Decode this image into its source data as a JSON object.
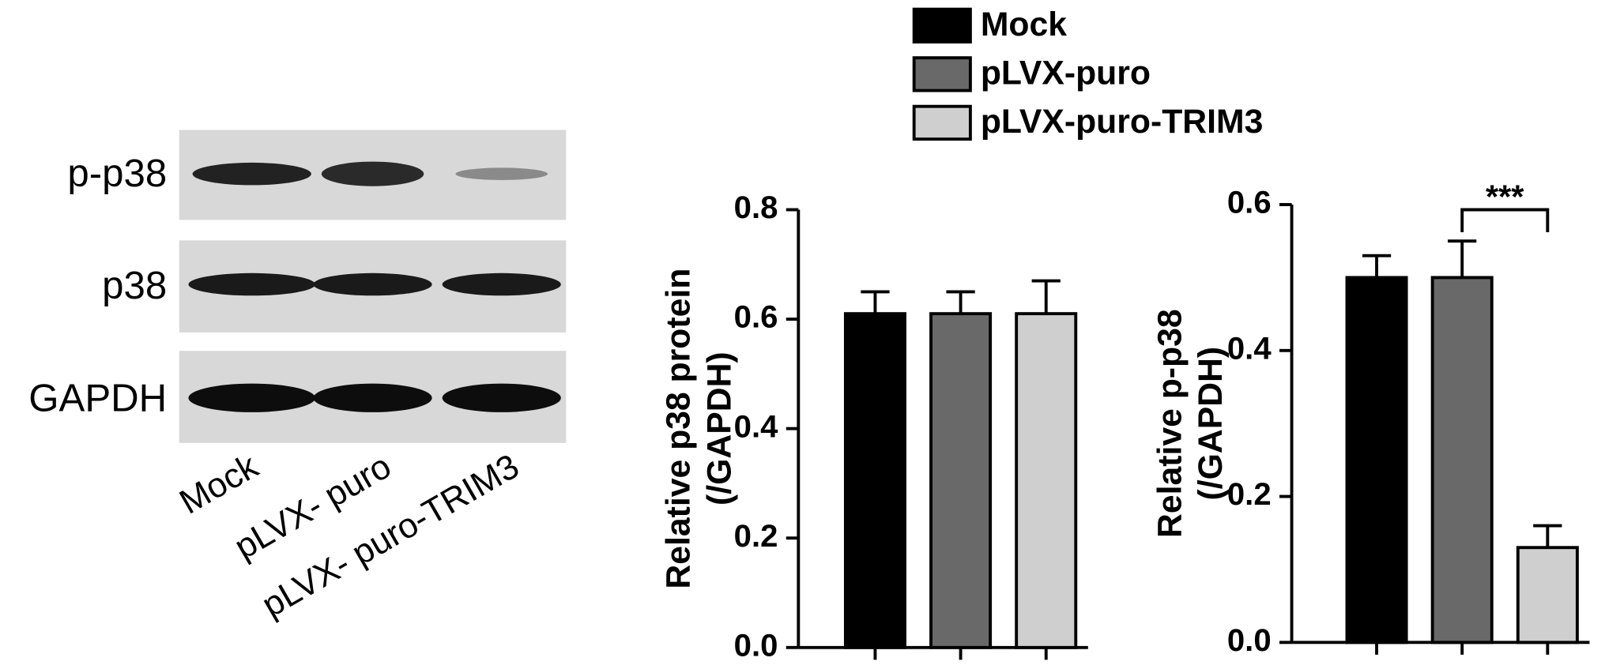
{
  "blot": {
    "rows": [
      "p-p38",
      "p38",
      "GAPDH"
    ],
    "lanes": [
      "Mock",
      "pLVX- puro",
      "pLVX- puro-TRIM3"
    ]
  },
  "legend": {
    "items": [
      {
        "label": "Mock",
        "color": "#000000"
      },
      {
        "label": "pLVX-puro",
        "color": "#696969"
      },
      {
        "label": "pLVX-puro-TRIM3",
        "color": "#cfcfcf"
      }
    ]
  },
  "chart_data": [
    {
      "type": "bar",
      "ylabel": [
        "Relative p38 protein",
        "(/GAPDH)"
      ],
      "categories": [
        null,
        null,
        null
      ],
      "values": [
        0.61,
        0.61,
        0.61
      ],
      "errors": [
        0.04,
        0.04,
        0.06
      ],
      "ylim": [
        0,
        0.8
      ],
      "yticks": [
        {
          "value": 0,
          "label": "0.0"
        },
        0.2,
        0.4,
        0.6,
        0.8
      ]
    },
    {
      "type": "bar",
      "ylabel": [
        "Relative p-p38",
        "(/GAPDH)"
      ],
      "categories": [
        null,
        null,
        null
      ],
      "values": [
        0.5,
        0.5,
        0.13
      ],
      "errors": [
        0.03,
        0.05,
        0.03
      ],
      "ylim": [
        0,
        0.6
      ],
      "yticks": [
        {
          "value": 0,
          "label": "0.0"
        },
        0.2,
        0.4,
        0.6
      ],
      "annotation": "***"
    }
  ]
}
